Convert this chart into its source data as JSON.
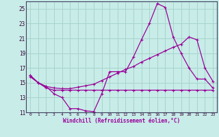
{
  "background_color": "#c8ece8",
  "grid_color": "#a8d4cc",
  "line_color": "#990099",
  "marker": "+",
  "xlabel": "Windchill (Refroidissement éolien,°C)",
  "xlim": [
    -0.5,
    23.5
  ],
  "ylim": [
    11,
    26
  ],
  "yticks": [
    11,
    13,
    15,
    17,
    19,
    21,
    23,
    25
  ],
  "xticks": [
    0,
    1,
    2,
    3,
    4,
    5,
    6,
    7,
    8,
    9,
    10,
    11,
    12,
    13,
    14,
    15,
    16,
    17,
    18,
    19,
    20,
    21,
    22,
    23
  ],
  "line1_x": [
    0,
    1,
    2,
    3,
    4,
    5,
    6,
    7,
    8,
    9,
    10,
    11,
    12,
    13,
    14,
    15,
    16,
    17,
    18,
    19,
    20,
    21,
    22,
    23
  ],
  "line1_y": [
    16.0,
    15.0,
    14.5,
    13.5,
    13.0,
    11.5,
    11.5,
    11.2,
    11.1,
    13.5,
    16.5,
    16.5,
    16.5,
    18.5,
    20.8,
    23.0,
    25.7,
    25.2,
    21.2,
    19.0,
    17.0,
    15.5,
    15.5,
    14.3
  ],
  "line2_x": [
    0,
    1,
    2,
    3,
    4,
    5,
    6,
    7,
    8,
    9,
    10,
    11,
    12,
    13,
    14,
    15,
    16,
    17,
    18,
    19,
    20,
    21,
    22,
    23
  ],
  "line2_y": [
    16.0,
    15.0,
    14.5,
    14.3,
    14.2,
    14.2,
    14.4,
    14.6,
    14.8,
    15.3,
    15.8,
    16.3,
    16.8,
    17.2,
    17.8,
    18.3,
    18.8,
    19.3,
    19.8,
    20.2,
    21.2,
    20.8,
    17.0,
    15.2
  ],
  "line3_x": [
    0,
    1,
    2,
    3,
    4,
    5,
    6,
    7,
    8,
    9,
    10,
    11,
    12,
    13,
    14,
    15,
    16,
    17,
    18,
    19,
    20,
    21,
    22,
    23
  ],
  "line3_y": [
    15.8,
    15.0,
    14.3,
    14.0,
    14.0,
    14.0,
    14.0,
    14.0,
    14.0,
    14.0,
    14.0,
    14.0,
    14.0,
    14.0,
    14.0,
    14.0,
    14.0,
    14.0,
    14.0,
    14.0,
    14.0,
    14.0,
    14.0,
    14.0
  ]
}
